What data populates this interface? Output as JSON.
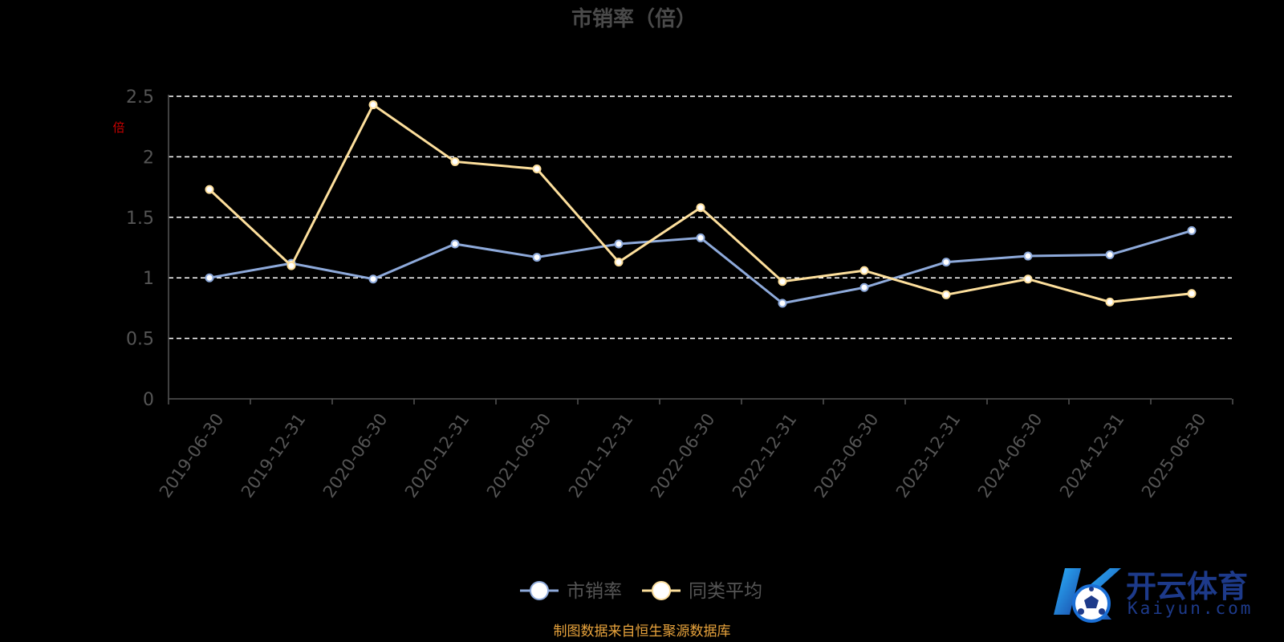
{
  "chart_data": {
    "type": "line",
    "title": "市销率（倍）",
    "x": [
      "2019-06-30",
      "2019-12-31",
      "2020-06-30",
      "2020-12-31",
      "2021-06-30",
      "2021-12-31",
      "2022-06-30",
      "2022-12-31",
      "2023-06-30",
      "2023-12-31",
      "2024-06-30",
      "2024-12-31",
      "2025-06-30"
    ],
    "series": [
      {
        "name": "市销率",
        "values": [
          1.0,
          1.12,
          0.99,
          1.28,
          1.17,
          1.28,
          1.33,
          0.79,
          0.92,
          1.13,
          1.18,
          1.19,
          1.39
        ],
        "color": "#8eaadb"
      },
      {
        "name": "同类平均",
        "values": [
          1.73,
          1.1,
          2.43,
          1.96,
          1.9,
          1.13,
          1.58,
          0.97,
          1.06,
          0.86,
          0.99,
          0.8,
          0.87
        ],
        "color": "#fddf9c"
      }
    ],
    "y_ticks": [
      "0",
      "0.5",
      "1",
      "1.5",
      "2",
      "2.5"
    ],
    "ylim": [
      0,
      2.5
    ],
    "grid": "dashed horizontal",
    "legend_position": "bottom-center",
    "ylabel_hint": "倍"
  },
  "source_note": "制图数据来自恒生聚源数据库",
  "logo": {
    "brand_cn": "开云体育",
    "brand_url": "Kaiyun.com",
    "colors": [
      "#1a9bef",
      "#1d3a8a"
    ]
  },
  "colors": {
    "background": "#000000",
    "axis_text": "#555555",
    "grid": "#ffffff",
    "note": "#e8a33c",
    "ylabel_hint": "#cc0000"
  }
}
